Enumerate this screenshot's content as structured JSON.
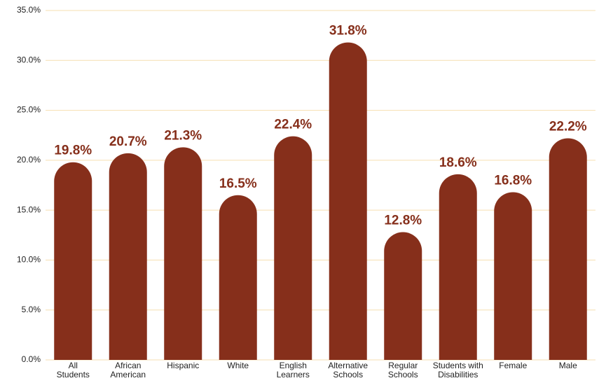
{
  "chart_data": {
    "type": "bar",
    "categories": [
      "All\nStudents",
      "African\nAmerican",
      "Hispanic",
      "White",
      "English\nLearners",
      "Alternative\nSchools",
      "Regular\nSchools",
      "Students with\nDisabilities",
      "Female",
      "Male"
    ],
    "values": [
      19.8,
      20.7,
      21.3,
      16.5,
      22.4,
      31.8,
      12.8,
      18.6,
      16.8,
      22.2
    ],
    "value_labels": [
      "19.8%",
      "20.7%",
      "21.3%",
      "16.5%",
      "22.4%",
      "31.8%",
      "12.8%",
      "18.6%",
      "16.8%",
      "22.2%"
    ],
    "color": "#862f1b",
    "ylim": [
      0,
      35
    ],
    "yticks": [
      {
        "value": 0,
        "label": "0.0%"
      },
      {
        "value": 5,
        "label": "5.0%"
      },
      {
        "value": 10,
        "label": "10.0%"
      },
      {
        "value": 15,
        "label": "15.0%"
      },
      {
        "value": 20,
        "label": "20.0%"
      },
      {
        "value": 25,
        "label": "25.0%"
      },
      {
        "value": 30,
        "label": "30.0%"
      },
      {
        "value": 35,
        "label": "35.0%"
      }
    ],
    "grid": true
  }
}
